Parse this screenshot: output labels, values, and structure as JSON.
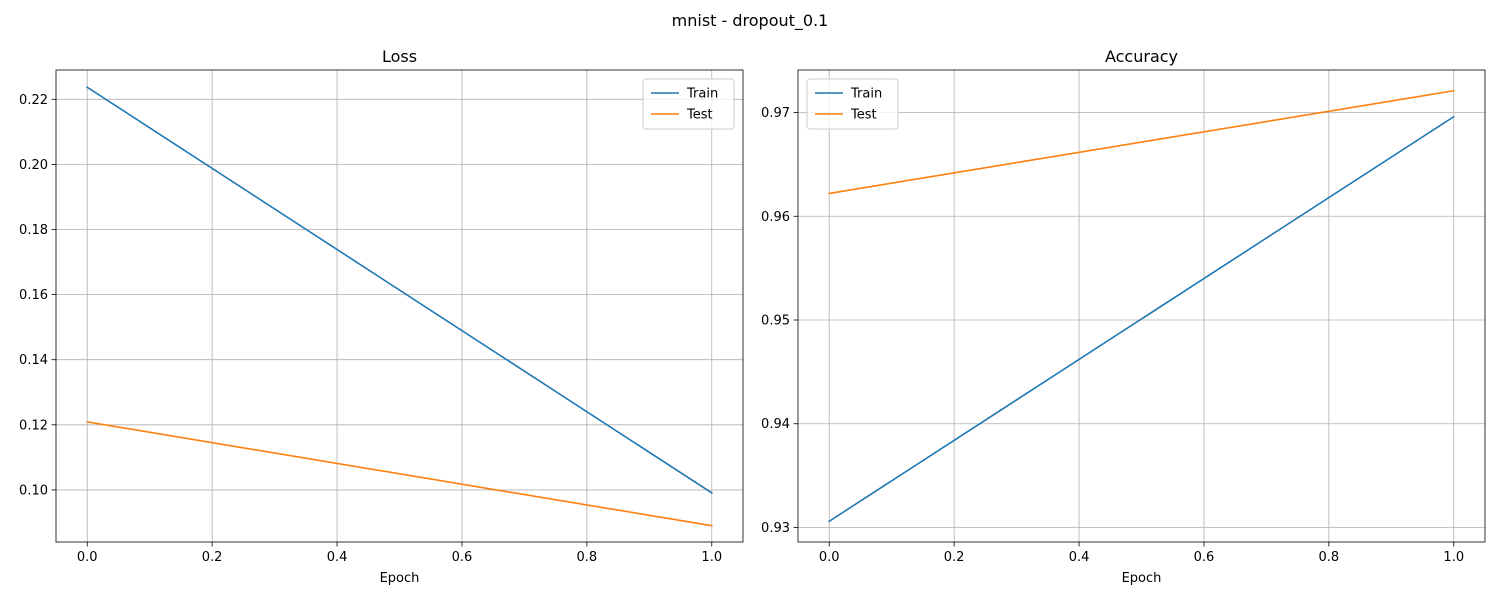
{
  "figure": {
    "suptitle": "mnist - dropout_0.1"
  },
  "colors": {
    "train": "#1f77b4",
    "test": "#ff7f0e",
    "grid": "#b0b0b0",
    "axes": "#000000"
  },
  "chart_data": [
    {
      "type": "line",
      "title": "Loss",
      "xlabel": "Epoch",
      "ylabel": "",
      "x": [
        0.0,
        1.0
      ],
      "xlim": [
        -0.05,
        1.05
      ],
      "ylim": [
        0.084,
        0.229
      ],
      "xticks": [
        0.0,
        0.2,
        0.4,
        0.6,
        0.8,
        1.0
      ],
      "xtick_labels": [
        "0.0",
        "0.2",
        "0.4",
        "0.6",
        "0.8",
        "1.0"
      ],
      "yticks": [
        0.1,
        0.12,
        0.14,
        0.16,
        0.18,
        0.2,
        0.22
      ],
      "ytick_labels": [
        "0.10",
        "0.12",
        "0.14",
        "0.16",
        "0.18",
        "0.20",
        "0.22"
      ],
      "grid": true,
      "legend_position": "upper-right",
      "series": [
        {
          "name": "Train",
          "values": [
            0.2237,
            0.0991
          ],
          "color": "#1f77b4"
        },
        {
          "name": "Test",
          "values": [
            0.1209,
            0.089
          ],
          "color": "#ff7f0e"
        }
      ]
    },
    {
      "type": "line",
      "title": "Accuracy",
      "xlabel": "Epoch",
      "ylabel": "",
      "x": [
        0.0,
        1.0
      ],
      "xlim": [
        -0.05,
        1.05
      ],
      "ylim": [
        0.9286,
        0.9741
      ],
      "xticks": [
        0.0,
        0.2,
        0.4,
        0.6,
        0.8,
        1.0
      ],
      "xtick_labels": [
        "0.0",
        "0.2",
        "0.4",
        "0.6",
        "0.8",
        "1.0"
      ],
      "yticks": [
        0.93,
        0.94,
        0.95,
        0.96,
        0.97
      ],
      "ytick_labels": [
        "0.93",
        "0.94",
        "0.95",
        "0.96",
        "0.97"
      ],
      "grid": true,
      "legend_position": "upper-left",
      "series": [
        {
          "name": "Train",
          "values": [
            0.9306,
            0.9696
          ],
          "color": "#1f77b4"
        },
        {
          "name": "Test",
          "values": [
            0.9622,
            0.9721
          ],
          "color": "#ff7f0e"
        }
      ]
    }
  ]
}
